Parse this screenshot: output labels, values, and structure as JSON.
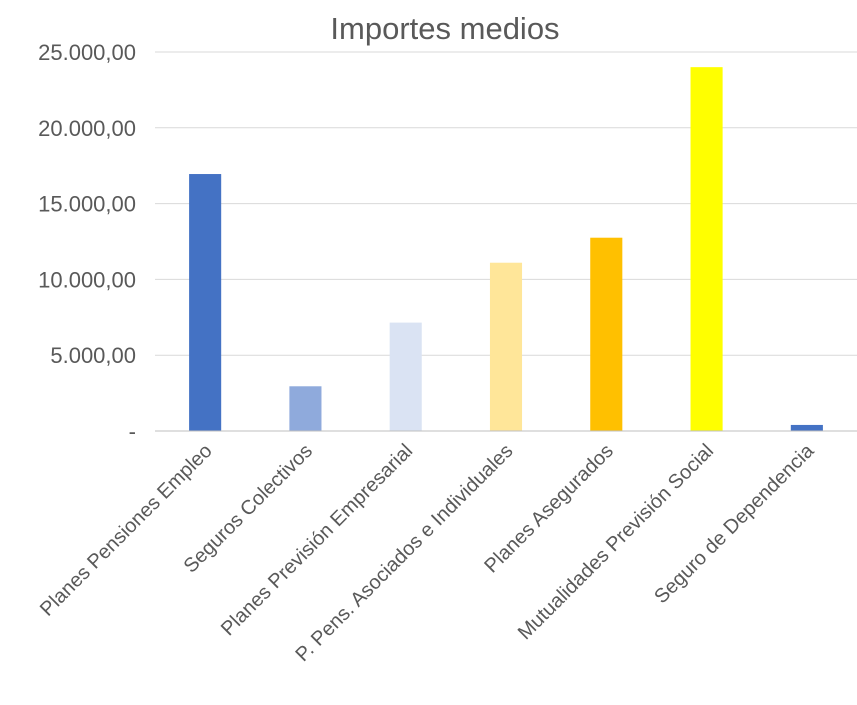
{
  "chart_data": {
    "type": "bar",
    "title": "Importes medios",
    "xlabel": "",
    "ylabel": "",
    "ylim": [
      0,
      25000
    ],
    "y_ticks": [
      {
        "value": 0,
        "label": "-"
      },
      {
        "value": 5000,
        "label": "5.000,00"
      },
      {
        "value": 10000,
        "label": "10.000,00"
      },
      {
        "value": 15000,
        "label": "15.000,00"
      },
      {
        "value": 20000,
        "label": "20.000,00"
      },
      {
        "value": 25000,
        "label": "25.000,00"
      }
    ],
    "grid": true,
    "legend": "none",
    "categories": [
      "Planes Pensiones Empleo",
      "Seguros Colectivos",
      "Planes Previsión Empresarial",
      "P. Pens. Asociados e Individuales",
      "Planes Asegurados",
      "Mutualidades Previsión Social",
      "Seguro de Dependencia"
    ],
    "values": [
      16950,
      2950,
      7150,
      11100,
      12750,
      24000,
      400
    ],
    "colors": [
      "#4472c4",
      "#8faadc",
      "#dae3f3",
      "#ffe699",
      "#ffc000",
      "#ffff00",
      "#4472c4"
    ]
  }
}
